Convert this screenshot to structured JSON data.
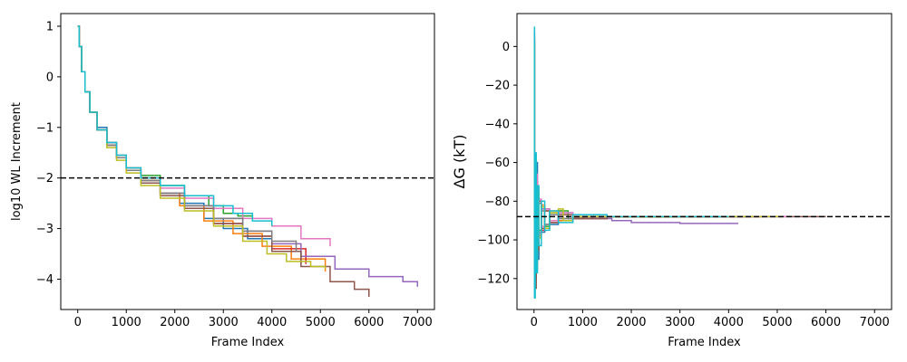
{
  "chart_data": [
    {
      "type": "line",
      "title": "",
      "xlabel": "Frame Index",
      "ylabel": "log10 WL Increment",
      "xlim": [
        -350,
        7350
      ],
      "ylim": [
        -4.6,
        1.25
      ],
      "xticks": [
        0,
        1000,
        2000,
        3000,
        4000,
        5000,
        6000,
        7000
      ],
      "xtick_labels": [
        "0",
        "1000",
        "2000",
        "3000",
        "4000",
        "5000",
        "6000",
        "7000"
      ],
      "yticks": [
        1,
        0,
        -1,
        -2,
        -3,
        -4
      ],
      "ytick_labels": [
        "1",
        "0",
        "−1",
        "−2",
        "−3",
        "−4"
      ],
      "reference_line": {
        "y": -2,
        "style": "dashed",
        "color": "#000000"
      },
      "grid": false,
      "series": [
        {
          "color": "#1f77b4",
          "x": [
            0,
            30,
            80,
            150,
            250,
            400,
            600,
            800,
            1000,
            1300,
            1700,
            2100,
            2600,
            3000,
            3500,
            4000,
            4600
          ],
          "y": [
            1.0,
            0.6,
            0.1,
            -0.3,
            -0.7,
            -1.0,
            -1.3,
            -1.6,
            -1.85,
            -2.05,
            -2.3,
            -2.5,
            -2.8,
            -3.0,
            -3.2,
            -3.45,
            -3.7
          ]
        },
        {
          "color": "#ff7f0e",
          "x": [
            0,
            30,
            80,
            150,
            250,
            400,
            600,
            800,
            1000,
            1300,
            1700,
            2100,
            2600,
            3200,
            3800,
            4400,
            5100
          ],
          "y": [
            1.0,
            0.6,
            0.1,
            -0.3,
            -0.7,
            -1.05,
            -1.35,
            -1.6,
            -1.8,
            -2.05,
            -2.3,
            -2.55,
            -2.85,
            -3.1,
            -3.35,
            -3.6,
            -3.85
          ]
        },
        {
          "color": "#2ca02c",
          "x": [
            0,
            30,
            80,
            150,
            250,
            400,
            600,
            800,
            1000,
            1300,
            1700,
            2200,
            2700,
            3000,
            3300,
            3600
          ],
          "y": [
            1.0,
            0.6,
            0.1,
            -0.3,
            -0.7,
            -1.05,
            -1.3,
            -1.55,
            -1.8,
            -1.95,
            -2.15,
            -2.35,
            -2.55,
            -2.7,
            -2.75,
            -2.8
          ]
        },
        {
          "color": "#d62728",
          "x": [
            0,
            30,
            80,
            150,
            250,
            400,
            600,
            800,
            1000,
            1300,
            1700,
            2200,
            2800,
            3400,
            4000,
            4700
          ],
          "y": [
            1.0,
            0.6,
            0.1,
            -0.3,
            -0.7,
            -1.05,
            -1.35,
            -1.6,
            -1.85,
            -2.1,
            -2.35,
            -2.6,
            -2.9,
            -3.15,
            -3.4,
            -3.7
          ]
        },
        {
          "color": "#9467bd",
          "x": [
            0,
            30,
            80,
            150,
            250,
            400,
            600,
            800,
            1000,
            1300,
            1700,
            2200,
            2800,
            3400,
            4000,
            4600,
            5300,
            6000,
            6700,
            7000
          ],
          "y": [
            1.0,
            0.6,
            0.1,
            -0.3,
            -0.7,
            -1.05,
            -1.35,
            -1.6,
            -1.85,
            -2.1,
            -2.3,
            -2.55,
            -2.8,
            -3.05,
            -3.3,
            -3.55,
            -3.8,
            -3.95,
            -4.05,
            -4.15
          ]
        },
        {
          "color": "#8c564b",
          "x": [
            0,
            30,
            80,
            150,
            250,
            400,
            600,
            800,
            1000,
            1300,
            1700,
            2200,
            2800,
            3400,
            4000,
            4600,
            5200,
            5700,
            6000
          ],
          "y": [
            1.0,
            0.6,
            0.1,
            -0.3,
            -0.7,
            -1.05,
            -1.35,
            -1.6,
            -1.85,
            -2.1,
            -2.35,
            -2.6,
            -2.9,
            -3.15,
            -3.45,
            -3.75,
            -4.05,
            -4.2,
            -4.35
          ]
        },
        {
          "color": "#e377c2",
          "x": [
            0,
            30,
            80,
            150,
            250,
            400,
            600,
            800,
            1000,
            1300,
            1700,
            2200,
            2800,
            3400,
            4000,
            4600,
            5200
          ],
          "y": [
            1.0,
            0.6,
            0.1,
            -0.3,
            -0.7,
            -1.05,
            -1.3,
            -1.55,
            -1.8,
            -2.0,
            -2.2,
            -2.4,
            -2.6,
            -2.8,
            -2.95,
            -3.2,
            -3.35
          ]
        },
        {
          "color": "#7f7f7f",
          "x": [
            0,
            30,
            80,
            150,
            250,
            400,
            600,
            800,
            1000,
            1300,
            1700,
            2200,
            2800,
            3400,
            4000,
            4500
          ],
          "y": [
            1.0,
            0.6,
            0.1,
            -0.3,
            -0.7,
            -1.05,
            -1.35,
            -1.6,
            -1.85,
            -2.05,
            -2.3,
            -2.55,
            -2.8,
            -3.05,
            -3.25,
            -3.45
          ]
        },
        {
          "color": "#bcbd22",
          "x": [
            0,
            30,
            80,
            150,
            250,
            400,
            600,
            800,
            1000,
            1300,
            1700,
            2200,
            2800,
            3400,
            3900,
            4300,
            4800,
            5100
          ],
          "y": [
            1.0,
            0.6,
            0.1,
            -0.3,
            -0.7,
            -1.05,
            -1.4,
            -1.65,
            -1.9,
            -2.15,
            -2.4,
            -2.65,
            -2.95,
            -3.25,
            -3.5,
            -3.65,
            -3.75,
            -3.8
          ]
        },
        {
          "color": "#17becf",
          "x": [
            0,
            30,
            80,
            150,
            250,
            400,
            600,
            800,
            1000,
            1300,
            1700,
            2200,
            2800,
            3200,
            3600,
            4000
          ],
          "y": [
            1.0,
            0.6,
            0.1,
            -0.3,
            -0.7,
            -1.05,
            -1.3,
            -1.55,
            -1.8,
            -2.0,
            -2.15,
            -2.35,
            -2.55,
            -2.7,
            -2.85,
            -2.95
          ]
        }
      ]
    },
    {
      "type": "line",
      "title": "",
      "xlabel": "Frame Index",
      "ylabel": "ΔG (kT)",
      "xlim": [
        -350,
        7350
      ],
      "ylim": [
        -136,
        17
      ],
      "xticks": [
        0,
        1000,
        2000,
        3000,
        4000,
        5000,
        6000,
        7000
      ],
      "xtick_labels": [
        "0",
        "1000",
        "2000",
        "3000",
        "4000",
        "5000",
        "6000",
        "7000"
      ],
      "yticks": [
        0,
        -20,
        -40,
        -60,
        -80,
        -100,
        -120
      ],
      "ytick_labels": [
        "0",
        "−20",
        "−40",
        "−60",
        "−80",
        "−100",
        "−120"
      ],
      "reference_line": {
        "y": -88,
        "style": "dashed",
        "color": "#000000"
      },
      "grid": false,
      "series": [
        {
          "color": "#1f77b4",
          "x": [
            0,
            10,
            25,
            45,
            70,
            100,
            150,
            220,
            320,
            500,
            800,
            1500,
            2500,
            4000
          ],
          "y": [
            8,
            -70,
            -120,
            -60,
            -110,
            -80,
            -96,
            -84,
            -92,
            -86,
            -89,
            -88,
            -88,
            -88
          ]
        },
        {
          "color": "#ff7f0e",
          "x": [
            0,
            10,
            25,
            45,
            70,
            100,
            150,
            220,
            320,
            500,
            800,
            1500,
            2500,
            4500
          ],
          "y": [
            5,
            -100,
            -65,
            -115,
            -75,
            -98,
            -82,
            -94,
            -85,
            -90,
            -87,
            -88,
            -88,
            -88
          ]
        },
        {
          "color": "#2ca02c",
          "x": [
            0,
            10,
            25,
            45,
            70,
            100,
            150,
            220,
            320,
            500,
            700,
            1000,
            1500,
            2500,
            3600
          ],
          "y": [
            3,
            -110,
            -62,
            -105,
            -78,
            -95,
            -83,
            -93,
            -86,
            -85,
            -89,
            -88,
            -88,
            -88,
            -88
          ]
        },
        {
          "color": "#d62728",
          "x": [
            0,
            10,
            25,
            45,
            70,
            100,
            150,
            220,
            320,
            500,
            800,
            1500,
            2500,
            4700
          ],
          "y": [
            2,
            -59,
            -118,
            -70,
            -104,
            -80,
            -95,
            -85,
            -91,
            -87,
            -89,
            -88,
            -88,
            -88
          ]
        },
        {
          "color": "#9467bd",
          "x": [
            0,
            10,
            25,
            45,
            70,
            100,
            150,
            220,
            320,
            500,
            800,
            1200,
            1600,
            2000,
            2500,
            3000,
            3500,
            4200
          ],
          "y": [
            4,
            -115,
            -70,
            -108,
            -80,
            -96,
            -84,
            -92,
            -87,
            -89,
            -88,
            -89,
            -90,
            -91,
            -91,
            -91.5,
            -91.5,
            -91.5
          ]
        },
        {
          "color": "#8c564b",
          "x": [
            0,
            10,
            25,
            45,
            70,
            100,
            150,
            220,
            320,
            500,
            800,
            1500,
            2500,
            4000,
            6000
          ],
          "y": [
            6,
            -90,
            -125,
            -72,
            -105,
            -81,
            -94,
            -85,
            -91,
            -87,
            -89,
            -88,
            -88,
            -88,
            -88
          ]
        },
        {
          "color": "#e377c2",
          "x": [
            0,
            10,
            25,
            45,
            70,
            100,
            150,
            220,
            320,
            500,
            800,
            1500,
            2500,
            4000,
            5200
          ],
          "y": [
            7,
            -80,
            -112,
            -66,
            -100,
            -79,
            -93,
            -84,
            -90,
            -86,
            -88,
            -88,
            -88,
            -88,
            -88
          ]
        },
        {
          "color": "#7f7f7f",
          "x": [
            0,
            10,
            25,
            45,
            70,
            100,
            150,
            220,
            320,
            500,
            800,
            1500,
            2500,
            4500
          ],
          "y": [
            3,
            -105,
            -75,
            -112,
            -82,
            -97,
            -85,
            -92,
            -87,
            -89,
            -88,
            -88,
            -88,
            -88
          ]
        },
        {
          "color": "#bcbd22",
          "x": [
            0,
            10,
            25,
            45,
            70,
            100,
            150,
            220,
            320,
            500,
            600,
            800,
            1500,
            2500,
            5100
          ],
          "y": [
            2,
            -95,
            -60,
            -108,
            -76,
            -99,
            -83,
            -94,
            -86,
            -84,
            -90,
            -88,
            -88,
            -88,
            -88
          ]
        },
        {
          "color": "#17becf",
          "x": [
            0,
            10,
            25,
            45,
            70,
            100,
            150,
            220,
            320,
            500,
            800,
            1500,
            2500,
            4000
          ],
          "y": [
            10,
            -130,
            -55,
            -117,
            -72,
            -103,
            -80,
            -95,
            -85,
            -91,
            -87,
            -88,
            -88,
            -88
          ]
        }
      ]
    }
  ]
}
